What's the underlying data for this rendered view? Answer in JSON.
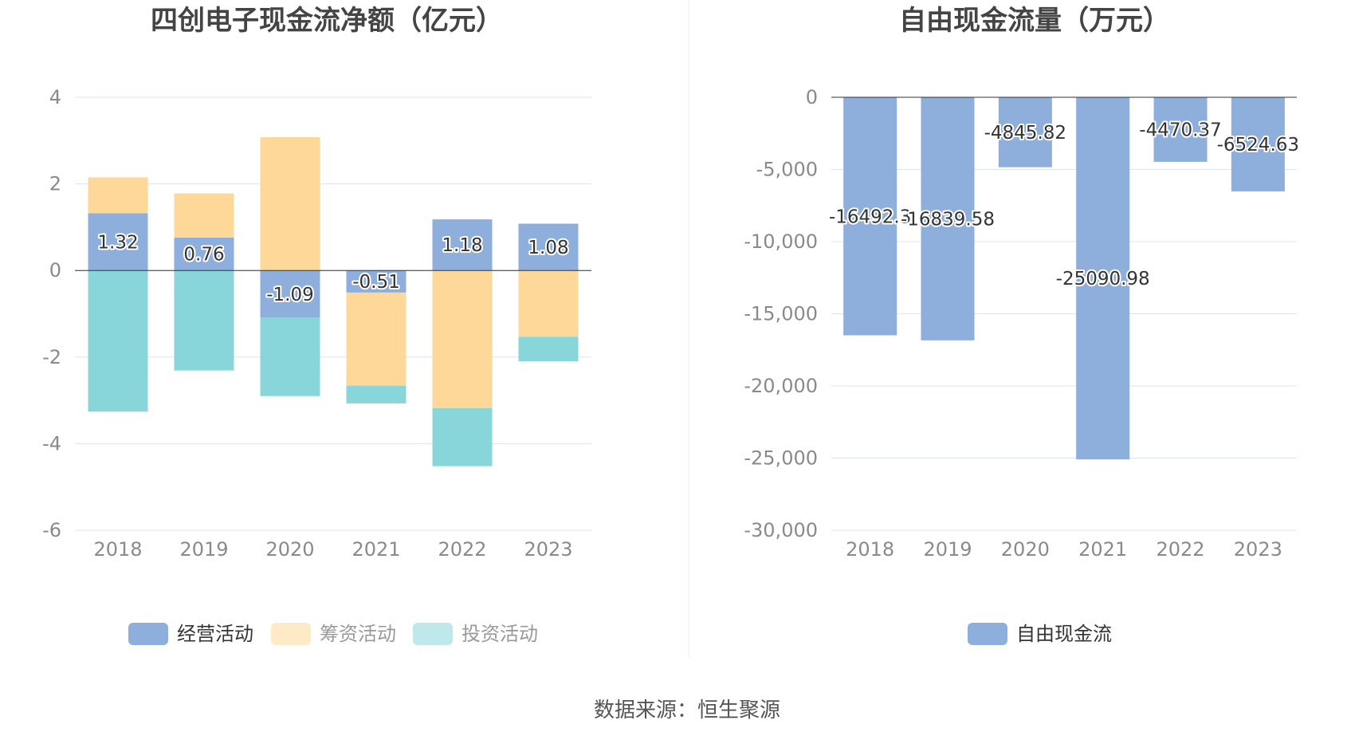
{
  "chart_data": [
    {
      "type": "bar",
      "stacked": true,
      "title": "四创电子现金流净额（亿元）",
      "categories": [
        "2018",
        "2019",
        "2020",
        "2021",
        "2022",
        "2023"
      ],
      "ylim": [
        -6,
        4
      ],
      "yticks": [
        4,
        2,
        0,
        -2,
        -4,
        -6
      ],
      "grid": true,
      "legend_position": "bottom",
      "series": [
        {
          "name": "经营活动",
          "color": "#8eaedc",
          "values": [
            1.32,
            0.76,
            -1.09,
            -0.51,
            1.18,
            1.08
          ],
          "labels": [
            "1.32",
            "0.76",
            "-1.09",
            "-0.51",
            "1.18",
            "1.08"
          ]
        },
        {
          "name": "筹资活动",
          "color": "#fed899",
          "values": [
            0.83,
            1.02,
            3.08,
            -2.15,
            -3.18,
            -1.53
          ]
        },
        {
          "name": "投资活动",
          "color": "#88d6d9",
          "values": [
            -3.26,
            -2.31,
            -1.81,
            -0.41,
            -1.34,
            -0.57
          ]
        }
      ]
    },
    {
      "type": "bar",
      "title": "自由现金流量（万元）",
      "categories": [
        "2018",
        "2019",
        "2020",
        "2021",
        "2022",
        "2023"
      ],
      "ylim": [
        -30000,
        0
      ],
      "yticks": [
        0,
        -5000,
        -10000,
        -15000,
        -20000,
        -25000,
        -30000
      ],
      "ytick_labels": [
        "0",
        "-5,000",
        "-10,000",
        "-15,000",
        "-20,000",
        "-25,000",
        "-30,000"
      ],
      "grid": true,
      "legend_position": "bottom",
      "series": [
        {
          "name": "自由现金流",
          "color": "#8eaedc",
          "values": [
            -16492.3,
            -16839.58,
            -4845.82,
            -25090.98,
            -4470.37,
            -6524.63
          ],
          "labels": [
            "-16492.3",
            "-16839.58",
            "-4845.82",
            "-25090.98",
            "-4470.37",
            "-6524.63"
          ]
        }
      ]
    }
  ],
  "footer": {
    "source": "数据来源：恒生聚源"
  },
  "colors": {
    "axis": "#333333",
    "grid": "#dde3ef",
    "tick_text": "#8a8a8a",
    "divider": "#eeeeee"
  }
}
